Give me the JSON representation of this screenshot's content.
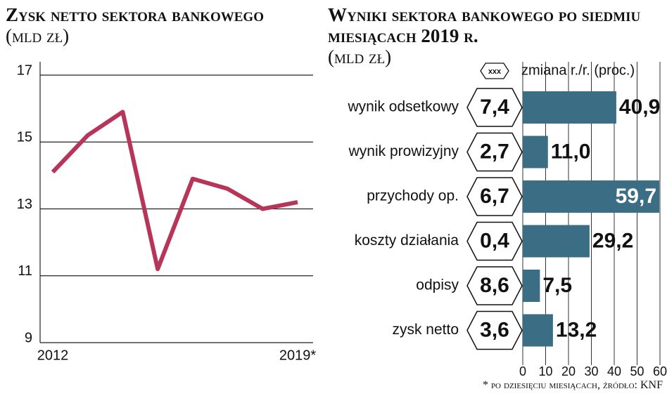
{
  "chart_data": [
    {
      "type": "line",
      "title": "Zysk netto sektora bankowego",
      "subtitle": "(mld zł)",
      "categories": [
        "2012",
        null,
        null,
        null,
        null,
        null,
        null,
        "2019*"
      ],
      "series": [
        {
          "color": "#b8355a",
          "values": [
            14.1,
            15.2,
            15.9,
            11.2,
            13.9,
            13.6,
            13.0,
            13.2
          ]
        }
      ],
      "ylim": [
        9,
        17
      ],
      "yticks": [
        9,
        11,
        13,
        15,
        17
      ],
      "grid": true
    },
    {
      "type": "bar",
      "title": "Wyniki sektora bankowego po siedmiu miesiącach 2019 r.",
      "subtitle": "(mld zł)",
      "categories": [
        "wynik odsetkowy",
        "wynik prowizyjny",
        "przychody op.",
        "koszty działania",
        "odpisy",
        "zysk netto"
      ],
      "series": [
        {
          "name": "xxx",
          "values": [
            7.4,
            2.7,
            6.7,
            0.4,
            8.6,
            3.6
          ],
          "value_labels": [
            "7,4",
            "2,7",
            "6,7",
            "0,4",
            "8,6",
            "3,6"
          ]
        },
        {
          "name": "zmiana r./r. (proc.)",
          "color": "#3b6e85",
          "values": [
            40.9,
            11.0,
            59.7,
            29.2,
            7.5,
            13.2
          ],
          "value_labels": [
            "40,9",
            "11,0",
            "59,7",
            "29,2",
            "7,5",
            "13,2"
          ]
        }
      ],
      "xlim": [
        0,
        60
      ],
      "xticks": [
        0,
        10,
        20,
        30,
        40,
        50,
        60
      ],
      "grid": true,
      "note": "* po dziesięciu miesiącach, źródło: KNF"
    }
  ]
}
